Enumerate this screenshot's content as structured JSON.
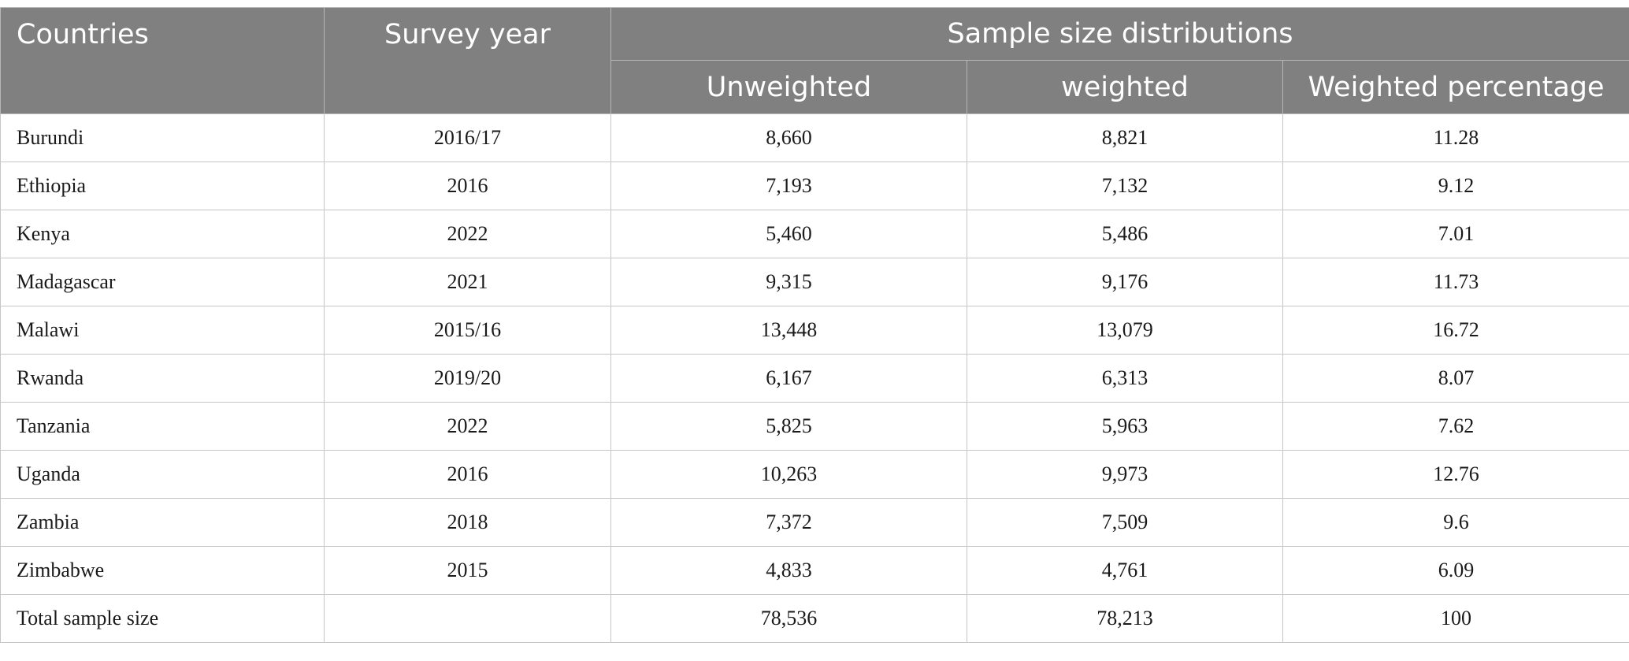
{
  "headers": {
    "countries": "Countries",
    "survey_year": "Survey year",
    "group": "Sample size distributions",
    "unweighted": "Unweighted",
    "weighted": "weighted",
    "weighted_percentage": "Weighted percentage"
  },
  "rows": [
    {
      "country": "Burundi",
      "year": "2016/17",
      "unweighted": "8,660",
      "weighted": "8,821",
      "pct": "11.28"
    },
    {
      "country": "Ethiopia",
      "year": "2016",
      "unweighted": "7,193",
      "weighted": "7,132",
      "pct": "9.12"
    },
    {
      "country": "Kenya",
      "year": "2022",
      "unweighted": "5,460",
      "weighted": "5,486",
      "pct": "7.01"
    },
    {
      "country": "Madagascar",
      "year": "2021",
      "unweighted": "9,315",
      "weighted": "9,176",
      "pct": "11.73"
    },
    {
      "country": "Malawi",
      "year": "2015/16",
      "unweighted": "13,448",
      "weighted": "13,079",
      "pct": "16.72"
    },
    {
      "country": "Rwanda",
      "year": "2019/20",
      "unweighted": "6,167",
      "weighted": "6,313",
      "pct": "8.07"
    },
    {
      "country": "Tanzania",
      "year": "2022",
      "unweighted": "5,825",
      "weighted": "5,963",
      "pct": "7.62"
    },
    {
      "country": "Uganda",
      "year": "2016",
      "unweighted": "10,263",
      "weighted": "9,973",
      "pct": "12.76"
    },
    {
      "country": "Zambia",
      "year": "2018",
      "unweighted": "7,372",
      "weighted": "7,509",
      "pct": "9.6"
    },
    {
      "country": "Zimbabwe",
      "year": "2015",
      "unweighted": "4,833",
      "weighted": "4,761",
      "pct": "6.09"
    },
    {
      "country": "Total sample size",
      "year": "",
      "unweighted": "78,536",
      "weighted": "78,213",
      "pct": "100"
    }
  ],
  "colors": {
    "header_bg": "#808080",
    "header_text": "#ffffff",
    "grid": "#c6c6c6"
  }
}
